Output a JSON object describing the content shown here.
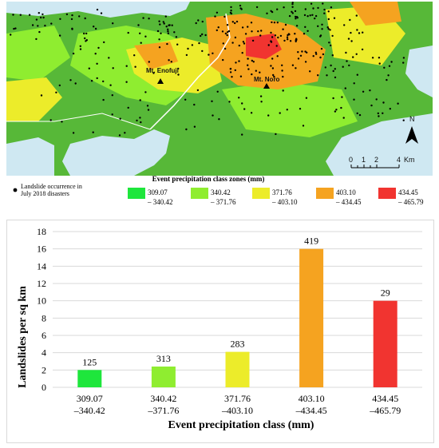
{
  "map": {
    "peaks": [
      "Mt. Enofuji",
      "Mt. Noro"
    ],
    "north_label": "N",
    "scale_ticks": [
      "0",
      "1",
      "2",
      "4"
    ],
    "scale_unit": "Km"
  },
  "legend": {
    "title": "Event  precipitation class zones (mm)",
    "landslide_label_line1": "Landslide occurrence in",
    "landslide_label_line2": "July 2018 disasters",
    "classes": [
      {
        "line1": "309.07",
        "line2": "– 340.42",
        "color": "#1ee63c"
      },
      {
        "line1": "340.42",
        "line2": "– 371.76",
        "color": "#8fed30"
      },
      {
        "line1": "371.76",
        "line2": "– 403.10",
        "color": "#ecec2a"
      },
      {
        "line1": "403.10",
        "line2": "– 434.45",
        "color": "#f5a320"
      },
      {
        "line1": "434.45",
        "line2": "– 465.79",
        "color": "#f13430"
      }
    ]
  },
  "chart_data": {
    "type": "bar",
    "categories": [
      {
        "line1": "309.07",
        "line2": "–340.42"
      },
      {
        "line1": "340.42",
        "line2": "–371.76"
      },
      {
        "line1": "371.76",
        "line2": "–403.10"
      },
      {
        "line1": "403.10",
        "line2": "–434.45"
      },
      {
        "line1": "434.45",
        "line2": "–465.79"
      }
    ],
    "values": [
      2.0,
      2.4,
      4.1,
      16.0,
      10.0
    ],
    "data_labels": [
      "125",
      "313",
      "283",
      "419",
      "29"
    ],
    "colors": [
      "#1ee63c",
      "#8fed30",
      "#ecec2a",
      "#f5a320",
      "#f13430"
    ],
    "xlabel": "Event precipitation class (mm)",
    "ylabel": "Landslides per sq km",
    "ylim": [
      0,
      18
    ],
    "yticks": [
      "0",
      "2",
      "4",
      "6",
      "8",
      "10",
      "12",
      "14",
      "16",
      "18"
    ],
    "grid": true
  }
}
